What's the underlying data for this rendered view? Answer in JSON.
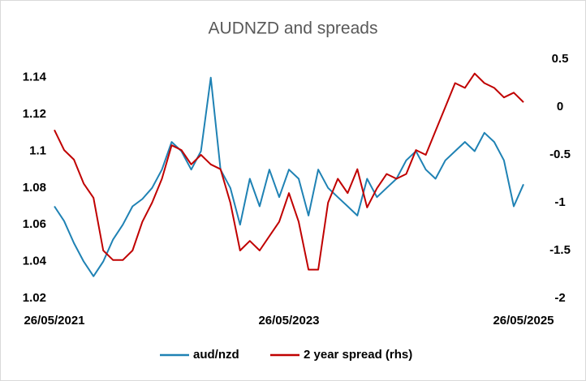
{
  "chart_data": {
    "type": "line",
    "title": "AUDNZD and spreads",
    "categories": [
      "26/05/2021",
      null,
      null,
      null,
      null,
      null,
      null,
      null,
      null,
      null,
      null,
      null,
      null,
      null,
      null,
      null,
      null,
      null,
      null,
      null,
      null,
      null,
      null,
      null,
      "26/05/2023",
      null,
      null,
      null,
      null,
      null,
      null,
      null,
      null,
      null,
      null,
      null,
      null,
      null,
      null,
      null,
      null,
      null,
      null,
      null,
      null,
      null,
      null,
      null,
      "26/05/2025"
    ],
    "series": [
      {
        "name": "aud/nzd",
        "color": "#1f82b4",
        "axis": "y",
        "values": [
          1.07,
          1.062,
          1.05,
          1.04,
          1.032,
          1.04,
          1.052,
          1.06,
          1.07,
          1.074,
          1.08,
          1.09,
          1.105,
          1.1,
          1.09,
          1.1,
          1.14,
          1.09,
          1.08,
          1.06,
          1.085,
          1.07,
          1.09,
          1.075,
          1.09,
          1.085,
          1.065,
          1.09,
          1.08,
          1.075,
          1.07,
          1.065,
          1.085,
          1.075,
          1.08,
          1.085,
          1.095,
          1.1,
          1.09,
          1.085,
          1.095,
          1.1,
          1.105,
          1.1,
          1.11,
          1.105,
          1.095,
          1.07,
          1.082
        ]
      },
      {
        "name": "2 year spread (rhs)",
        "color": "#c00000",
        "axis": "y2",
        "values": [
          -0.24,
          -0.45,
          -0.55,
          -0.8,
          -0.95,
          -1.5,
          -1.6,
          -1.6,
          -1.5,
          -1.2,
          -1.0,
          -0.75,
          -0.4,
          -0.45,
          -0.6,
          -0.5,
          -0.6,
          -0.65,
          -1.0,
          -1.5,
          -1.4,
          -1.5,
          -1.35,
          -1.2,
          -0.9,
          -1.2,
          -1.7,
          -1.7,
          -1.0,
          -0.75,
          -0.9,
          -0.65,
          -1.05,
          -0.85,
          -0.7,
          -0.75,
          -0.7,
          -0.45,
          -0.5,
          -0.25,
          0.0,
          0.25,
          0.2,
          0.35,
          0.25,
          0.2,
          0.1,
          0.15,
          0.05
        ]
      }
    ],
    "ylim": [
      1.02,
      1.15
    ],
    "yticks": [
      1.02,
      1.04,
      1.06,
      1.08,
      1.1,
      1.12,
      1.14
    ],
    "y2lim": [
      -2,
      0.5
    ],
    "y2ticks": [
      -2,
      -1.5,
      -1,
      -0.5,
      0,
      0.5
    ],
    "grid": false,
    "legend": "bottom"
  }
}
